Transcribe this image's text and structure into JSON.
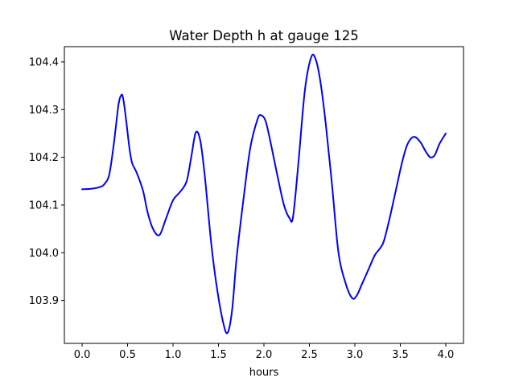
{
  "chart_data": {
    "type": "line",
    "title": "Water Depth h at gauge 125",
    "xlabel": "hours",
    "ylabel": "",
    "xlim": [
      -0.195,
      4.195
    ],
    "ylim": [
      103.81,
      104.432
    ],
    "xticks": [
      0.0,
      0.5,
      1.0,
      1.5,
      2.0,
      2.5,
      3.0,
      3.5,
      4.0
    ],
    "xtick_labels": [
      "0.0",
      "0.5",
      "1.0",
      "1.5",
      "2.0",
      "2.5",
      "3.0",
      "3.5",
      "4.0"
    ],
    "yticks": [
      103.9,
      104.0,
      104.1,
      104.2,
      104.3,
      104.4
    ],
    "ytick_labels": [
      "103.9",
      "104.0",
      "104.1",
      "104.2",
      "104.3",
      "104.4"
    ],
    "grid": false,
    "series": [
      {
        "color": "#0000ff",
        "x": [
          0.0,
          0.1,
          0.2,
          0.25,
          0.3,
          0.35,
          0.4,
          0.43,
          0.45,
          0.48,
          0.52,
          0.55,
          0.6,
          0.67,
          0.72,
          0.78,
          0.85,
          0.92,
          1.0,
          1.08,
          1.15,
          1.2,
          1.25,
          1.3,
          1.35,
          1.42,
          1.48,
          1.55,
          1.6,
          1.65,
          1.7,
          1.78,
          1.85,
          1.93,
          1.97,
          2.02,
          2.08,
          2.15,
          2.22,
          2.28,
          2.32,
          2.38,
          2.45,
          2.52,
          2.57,
          2.62,
          2.68,
          2.75,
          2.82,
          2.9,
          2.97,
          3.02,
          3.08,
          3.15,
          3.22,
          3.28,
          3.32,
          3.38,
          3.45,
          3.52,
          3.58,
          3.65,
          3.72,
          3.78,
          3.83,
          3.88,
          3.93,
          4.0
        ],
        "y": [
          104.133,
          104.134,
          104.138,
          104.145,
          104.165,
          104.23,
          104.31,
          104.33,
          104.325,
          104.285,
          104.22,
          104.188,
          104.168,
          104.13,
          104.085,
          104.05,
          104.037,
          104.07,
          104.11,
          104.128,
          104.15,
          104.2,
          104.252,
          104.235,
          104.16,
          104.02,
          103.93,
          103.855,
          103.832,
          103.88,
          103.99,
          104.12,
          104.22,
          104.28,
          104.288,
          104.275,
          104.225,
          104.16,
          104.1,
          104.073,
          104.075,
          104.19,
          104.34,
          104.41,
          104.405,
          104.36,
          104.27,
          104.14,
          104.0,
          103.935,
          103.905,
          103.91,
          103.935,
          103.965,
          103.995,
          104.01,
          104.025,
          104.07,
          104.13,
          104.19,
          104.228,
          104.243,
          104.232,
          104.212,
          104.2,
          104.205,
          104.228,
          104.25
        ]
      }
    ]
  }
}
